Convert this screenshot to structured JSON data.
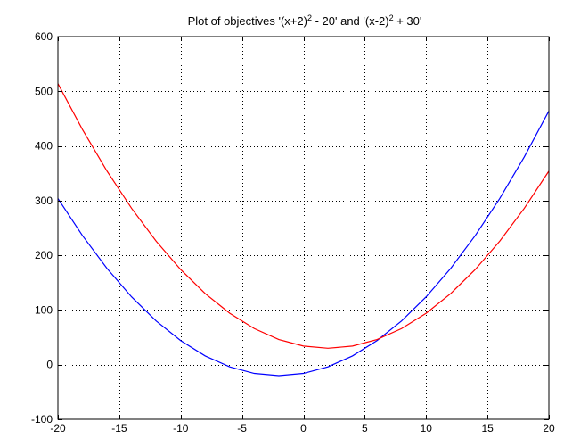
{
  "chart_data": {
    "type": "line",
    "title": {
      "parts": [
        {
          "text": "Plot of objectives '(x+2)"
        },
        {
          "text": "2",
          "sup": true
        },
        {
          "text": " - 20' and '(x-2)"
        },
        {
          "text": "2",
          "sup": true
        },
        {
          "text": " + 30'"
        }
      ]
    },
    "xlabel": "",
    "ylabel": "",
    "xlim": [
      -20,
      20
    ],
    "ylim": [
      -100,
      600
    ],
    "xticks": [
      -20,
      -15,
      -10,
      -5,
      0,
      5,
      10,
      15,
      20
    ],
    "yticks": [
      -100,
      0,
      100,
      200,
      300,
      400,
      500,
      600
    ],
    "grid": true,
    "x": [
      -20,
      -18,
      -16,
      -14,
      -12,
      -10,
      -8,
      -6,
      -4,
      -2,
      0,
      2,
      4,
      6,
      8,
      10,
      12,
      14,
      16,
      18,
      20
    ],
    "series": [
      {
        "color": "#0000ff",
        "values": [
          304,
          236,
          176,
          124,
          80,
          44,
          16,
          -4,
          -16,
          -20,
          -16,
          -4,
          16,
          44,
          80,
          124,
          176,
          236,
          304,
          380,
          464
        ]
      },
      {
        "color": "#ff0000",
        "values": [
          514,
          430,
          354,
          286,
          226,
          174,
          130,
          94,
          66,
          46,
          34,
          30,
          34,
          46,
          66,
          94,
          130,
          174,
          226,
          286,
          354
        ]
      }
    ]
  }
}
